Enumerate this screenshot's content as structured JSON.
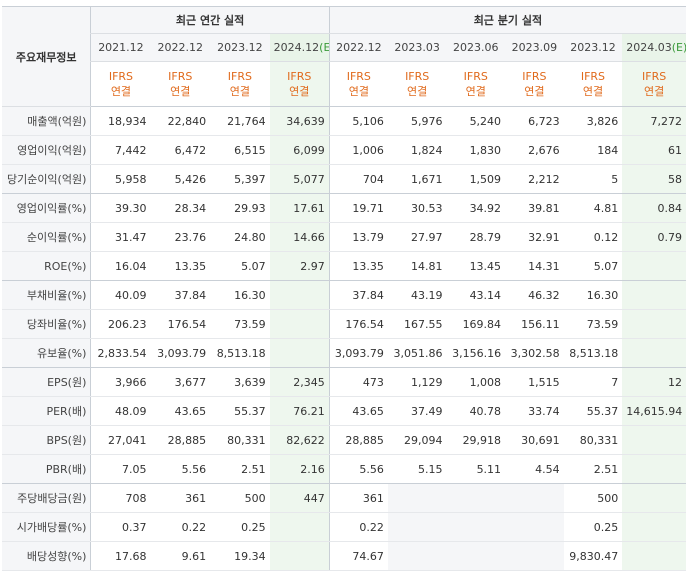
{
  "header": {
    "label_column": "주요재무정보",
    "annual_title": "최근 연간 실적",
    "quarter_title": "최근 분기 실적",
    "annual_periods": [
      "2021.12",
      "2022.12",
      "2023.12",
      "2024.12"
    ],
    "annual_est_marker": "(E)",
    "quarter_periods": [
      "2022.12",
      "2023.03",
      "2023.06",
      "2023.09",
      "2023.12",
      "2024.03"
    ],
    "quarter_est_marker": "(E)",
    "ifrs_top": "IFRS",
    "ifrs_bottom": "연결"
  },
  "rows": [
    {
      "label": "매출액(억원)",
      "annual": [
        "18,934",
        "22,840",
        "21,764",
        "34,639"
      ],
      "quarter": [
        "5,106",
        "5,976",
        "5,240",
        "6,723",
        "3,826",
        "7,272"
      ]
    },
    {
      "label": "영업이익(억원)",
      "annual": [
        "7,442",
        "6,472",
        "6,515",
        "6,099"
      ],
      "quarter": [
        "1,006",
        "1,824",
        "1,830",
        "2,676",
        "184",
        "61"
      ]
    },
    {
      "label": "당기순이익(억원)",
      "annual": [
        "5,958",
        "5,426",
        "5,397",
        "5,077"
      ],
      "quarter": [
        "704",
        "1,671",
        "1,509",
        "2,212",
        "5",
        "58"
      ]
    },
    {
      "label": "영업이익률(%)",
      "annual": [
        "39.30",
        "28.34",
        "29.93",
        "17.61"
      ],
      "quarter": [
        "19.71",
        "30.53",
        "34.92",
        "39.81",
        "4.81",
        "0.84"
      ]
    },
    {
      "label": "순이익률(%)",
      "annual": [
        "31.47",
        "23.76",
        "24.80",
        "14.66"
      ],
      "quarter": [
        "13.79",
        "27.97",
        "28.79",
        "32.91",
        "0.12",
        "0.79"
      ]
    },
    {
      "label": "ROE(%)",
      "annual": [
        "16.04",
        "13.35",
        "5.07",
        "2.97"
      ],
      "quarter": [
        "13.35",
        "14.81",
        "13.45",
        "14.31",
        "5.07",
        ""
      ]
    },
    {
      "label": "부채비율(%)",
      "annual": [
        "40.09",
        "37.84",
        "16.30",
        ""
      ],
      "quarter": [
        "37.84",
        "43.19",
        "43.14",
        "46.32",
        "16.30",
        ""
      ]
    },
    {
      "label": "당좌비율(%)",
      "annual": [
        "206.23",
        "176.54",
        "73.59",
        ""
      ],
      "quarter": [
        "176.54",
        "167.55",
        "169.84",
        "156.11",
        "73.59",
        ""
      ]
    },
    {
      "label": "유보율(%)",
      "annual": [
        "2,833.54",
        "3,093.79",
        "8,513.18",
        ""
      ],
      "quarter": [
        "3,093.79",
        "3,051.86",
        "3,156.16",
        "3,302.58",
        "8,513.18",
        ""
      ]
    },
    {
      "label": "EPS(원)",
      "annual": [
        "3,966",
        "3,677",
        "3,639",
        "2,345"
      ],
      "quarter": [
        "473",
        "1,129",
        "1,008",
        "1,515",
        "7",
        "12"
      ]
    },
    {
      "label": "PER(배)",
      "annual": [
        "48.09",
        "43.65",
        "55.37",
        "76.21"
      ],
      "quarter": [
        "43.65",
        "37.49",
        "40.78",
        "33.74",
        "55.37",
        "14,615.94"
      ]
    },
    {
      "label": "BPS(원)",
      "annual": [
        "27,041",
        "28,885",
        "80,331",
        "82,622"
      ],
      "quarter": [
        "28,885",
        "29,094",
        "29,918",
        "30,691",
        "80,331",
        ""
      ]
    },
    {
      "label": "PBR(배)",
      "annual": [
        "7.05",
        "5.56",
        "2.51",
        "2.16"
      ],
      "quarter": [
        "5.56",
        "5.15",
        "5.11",
        "4.54",
        "2.51",
        ""
      ]
    },
    {
      "label": "주당배당금(원)",
      "annual": [
        "708",
        "361",
        "500",
        "447"
      ],
      "quarter": [
        "361",
        "",
        "",
        "",
        "500",
        ""
      ]
    },
    {
      "label": "시가배당률(%)",
      "annual": [
        "0.37",
        "0.22",
        "0.25",
        ""
      ],
      "quarter": [
        "0.22",
        "",
        "",
        "",
        "0.25",
        ""
      ]
    },
    {
      "label": "배당성향(%)",
      "annual": [
        "17.68",
        "9.61",
        "19.34",
        ""
      ],
      "quarter": [
        "74.67",
        "",
        "",
        "",
        "9,830.47",
        ""
      ]
    }
  ]
}
